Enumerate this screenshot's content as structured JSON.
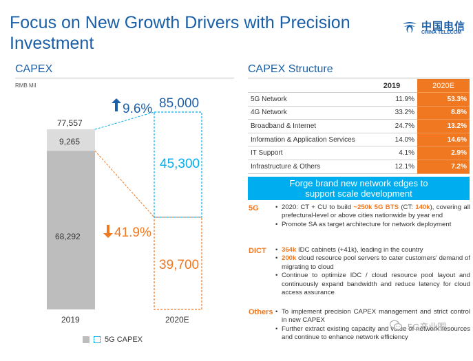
{
  "header": {
    "title_line1": "Focus on New Growth Drivers with Precision",
    "title_line2": "Investment",
    "logo_cn": "中国电信",
    "logo_en": "CHINA TELECOM"
  },
  "capex": {
    "heading": "CAPEX",
    "unit": "RMB Mil",
    "total_2019": "77,557",
    "fiveg_2019": "9,265",
    "other_2019": "68,292",
    "total_2020": "85,000",
    "fiveg_2020": "45,300",
    "other_2020": "39,700",
    "growth_total": "9.6%",
    "growth_other": "41.9%",
    "year_2019": "2019",
    "year_2020": "2020E",
    "legend_label": "5G CAPEX",
    "colors": {
      "gray_dark": "#bdbdbd",
      "gray_light": "#dcdcdc",
      "cyan": "#00aeef",
      "orange": "#f07820",
      "blue": "#1a5fa8"
    }
  },
  "chart_data": {
    "type": "bar",
    "categories": [
      "2019",
      "2020E"
    ],
    "series": [
      {
        "name": "5G CAPEX",
        "values": [
          9265,
          45300
        ]
      },
      {
        "name": "",
        "values": [
          68292,
          39700
        ]
      }
    ],
    "totals": [
      77557,
      85000
    ],
    "ylabel": "RMB Mil",
    "ylim": [
      0,
      85000
    ],
    "annotations": [
      "9.6%",
      "41.9%"
    ]
  },
  "structure": {
    "heading": "CAPEX Structure",
    "col_2019": "2019",
    "col_2020": "2020E",
    "rows": [
      {
        "name": "5G Network",
        "v2019": "11.9%",
        "v2020": "53.3%"
      },
      {
        "name": "4G Network",
        "v2019": "33.2%",
        "v2020": "8.8%"
      },
      {
        "name": "Broadband & Internet",
        "v2019": "24.7%",
        "v2020": "13.2%"
      },
      {
        "name": "Information & Application Services",
        "v2019": "14.0%",
        "v2020": "14.6%"
      },
      {
        "name": "IT Support",
        "v2019": "4.1%",
        "v2020": "2.9%"
      },
      {
        "name": "Infrastructure & Others",
        "v2019": "12.1%",
        "v2020": "7.2%"
      }
    ]
  },
  "forge": {
    "banner_line1": "Forge brand new network edges to",
    "banner_line2": "support scale development",
    "cat_5g": "5G",
    "cat_dict": "DICT",
    "cat_others": "Others",
    "b5g_1a": "2020: CT + CU to build ",
    "b5g_1b": "~250k 5G BTS",
    "b5g_1c": " (CT: ",
    "b5g_1d": "140k",
    "b5g_1e": "), covering all prefectural-level or above cities nationwide by year end",
    "b5g_2": "Promote SA as target architecture for network deployment",
    "dict_1a": "364k",
    "dict_1b": " IDC cabinets (+41k), leading in the country",
    "dict_2a": "200k",
    "dict_2b": " cloud resource pool servers to cater customers' demand of migrating to cloud",
    "dict_3": "Continue to optimize IDC / cloud resource pool layout and continuously expand bandwidth and reduce latency for cloud access assurance",
    "oth_1": "To implement precision CAPEX management and strict control in new CAPEX",
    "oth_2": "Further extract existing capacity and value of network resources and continue to enhance network efficiency"
  },
  "watermark": {
    "text": "5G产业圈"
  }
}
